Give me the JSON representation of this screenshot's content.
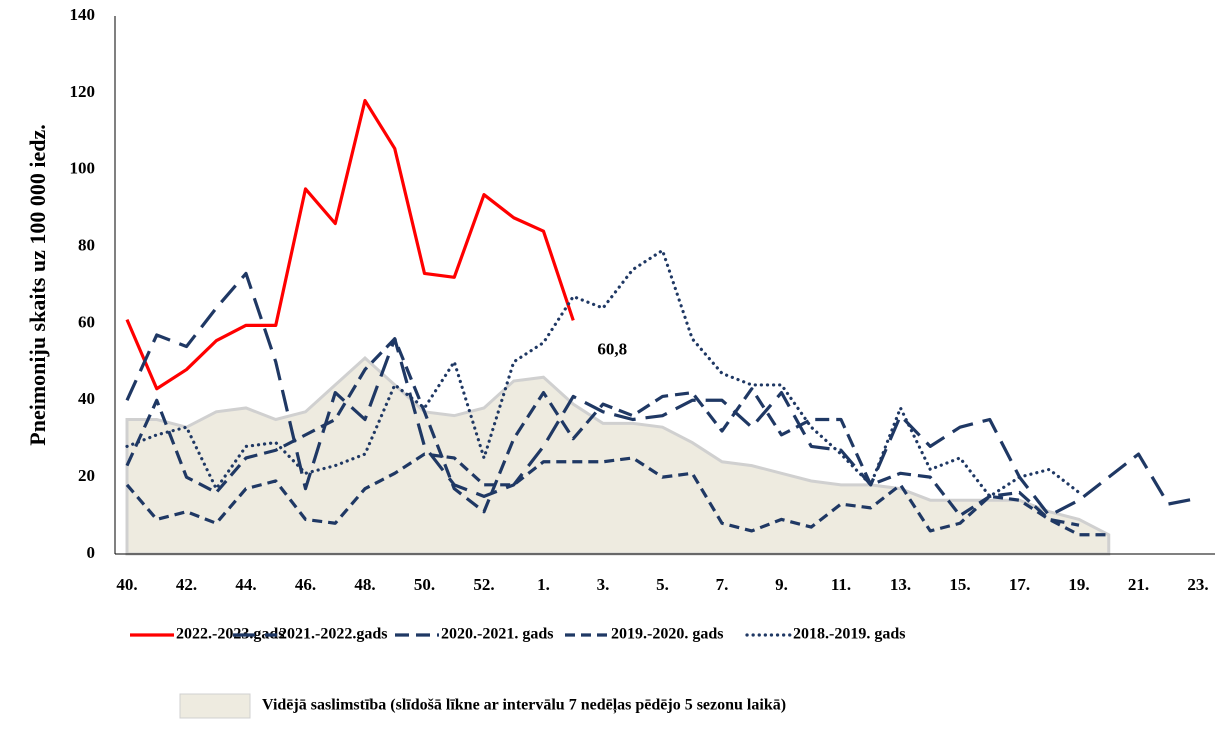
{
  "chart_data": {
    "type": "line",
    "y_label": "Pneimoniju skaits uz 100 000 iedz.",
    "categories": [
      "40.",
      null,
      "42.",
      null,
      "44.",
      null,
      "46.",
      null,
      "48.",
      null,
      "50.",
      null,
      "52.",
      null,
      "1.",
      null,
      "3.",
      null,
      "5.",
      null,
      "7.",
      null,
      "9.",
      null,
      "11.",
      null,
      "13.",
      null,
      "15.",
      null,
      "17.",
      null,
      "19.",
      null,
      "21.",
      null,
      "23."
    ],
    "ylim": [
      0,
      140
    ],
    "yticks": [
      0,
      20,
      40,
      60,
      80,
      100,
      120,
      140
    ],
    "grid": false,
    "series": [
      {
        "name": "2022.-2023.gads",
        "color": "#ff0000",
        "style": "solid",
        "values": [
          61,
          43,
          48,
          55.5,
          59.5,
          59.5,
          95,
          86,
          118,
          105.5,
          73,
          72,
          93.5,
          87.5,
          84,
          60.8,
          null,
          null,
          null,
          null,
          null,
          null,
          null,
          null,
          null,
          null,
          null,
          null,
          null,
          null,
          null,
          null,
          null,
          null,
          null,
          null,
          null
        ],
        "value_labels": [
          null,
          null,
          null,
          null,
          null,
          null,
          null,
          null,
          null,
          null,
          null,
          null,
          null,
          null,
          null,
          "60,8",
          null,
          null,
          null,
          null,
          null,
          null,
          null,
          null,
          null,
          null,
          null,
          null,
          null,
          null,
          null,
          null,
          null,
          null,
          null,
          null,
          null
        ]
      },
      {
        "name": "2021.-2022.gads",
        "color": "#1f3864",
        "style": "long-dash",
        "values": [
          40,
          57,
          54,
          64,
          73,
          50,
          17,
          42,
          35,
          56,
          28,
          18,
          15,
          18,
          28,
          41,
          37,
          35,
          36,
          40,
          40,
          33,
          42,
          28,
          27,
          18,
          36,
          28,
          33,
          35,
          20,
          10,
          14,
          20,
          26,
          13,
          14.5
        ]
      },
      {
        "name": "2020.-2021. gads",
        "color": "#1f3864",
        "style": "dash",
        "values": [
          23,
          40,
          20,
          16,
          25,
          27,
          31,
          35,
          48,
          56,
          37,
          17,
          11,
          30,
          42,
          30,
          39,
          36,
          41,
          42,
          32,
          43,
          31,
          35,
          35,
          18,
          21,
          20,
          10,
          15,
          16,
          9,
          7.5,
          null,
          null,
          null,
          null
        ]
      },
      {
        "name": "2019.-2020. gads",
        "color": "#1f3864",
        "style": "short-dash",
        "values": [
          18,
          9,
          11,
          8,
          17,
          19,
          9,
          8,
          17,
          21,
          26,
          25,
          18,
          18,
          24,
          24,
          24,
          25,
          20,
          21,
          8,
          6,
          9,
          7,
          13,
          12,
          18,
          6,
          8,
          15,
          14,
          9,
          5,
          5,
          null,
          null,
          null
        ]
      },
      {
        "name": "2018.-2019. gads",
        "color": "#1f3864",
        "style": "dot",
        "values": [
          28,
          31,
          33,
          17,
          28,
          29,
          21,
          23,
          26,
          44,
          38,
          50,
          25,
          50,
          55,
          67,
          64,
          74,
          79,
          56,
          47,
          44,
          44,
          33,
          26,
          18,
          38,
          22,
          25,
          15,
          20,
          22,
          16,
          null,
          null,
          null,
          null
        ]
      },
      {
        "name": "Vidējā saslimstība (slīdošā līkne ar intervālu 7 nedēļas pēdējo 5 sezonu laikā)",
        "color": "#eeebe0",
        "style": "area",
        "values": [
          35,
          35,
          33,
          37,
          38,
          35,
          37,
          44,
          51,
          44,
          37,
          36,
          38,
          45,
          46,
          39,
          34,
          34,
          33,
          29,
          24,
          23,
          21,
          19,
          18,
          18,
          17,
          14,
          14,
          14,
          14,
          11,
          9,
          5,
          null,
          null,
          null
        ]
      }
    ]
  }
}
